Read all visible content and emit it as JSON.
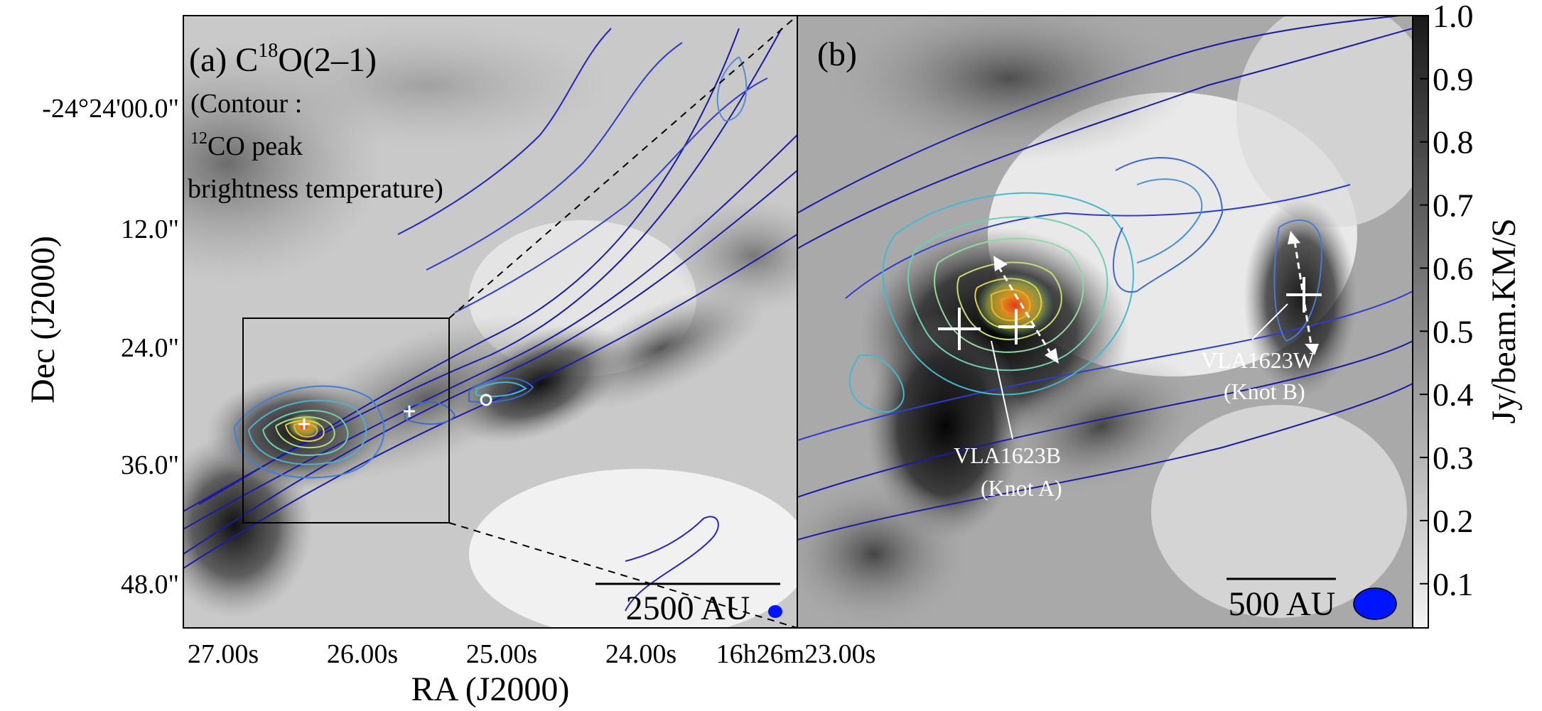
{
  "panel_a": {
    "label": "(a) C",
    "label_sup": "18",
    "label_rest": "O(2–1)",
    "note_line1": "(Contour :",
    "note_line2_sup": "12",
    "note_line2": "CO peak",
    "note_line3": "brightness temperature)",
    "scale_bar": "2500 AU"
  },
  "panel_b": {
    "label": "(b)",
    "source_1_name": "VLA1623B",
    "source_1_knot": "(Knot A)",
    "source_2_name": "VLA1623W",
    "source_2_knot": "(Knot B)",
    "scale_bar": "500 AU"
  },
  "axes": {
    "ylabel": "Dec (J2000)",
    "xlabel": "RA (J2000)",
    "yticks": [
      "-24°24'00.0\"",
      "12.0\"",
      "24.0\"",
      "36.0\"",
      "48.0\""
    ],
    "xticks": [
      "27.00s",
      "26.00s",
      "25.00s",
      "24.00s",
      "16h26m23.00s"
    ]
  },
  "colorbar": {
    "label": "Jy/beam.KM/S",
    "ticks": [
      "1.0",
      "0.9",
      "0.8",
      "0.7",
      "0.6",
      "0.5",
      "0.4",
      "0.3",
      "0.2",
      "0.1"
    ],
    "range": [
      0.03,
      1.0
    ],
    "colormap": "gray-inverted"
  },
  "colors": {
    "contour_low": "#1a1aa8",
    "contour_mid": "#44b8d0",
    "contour_high": "#e03a1a",
    "beam": "#0015ff",
    "frame": "#000000"
  }
}
